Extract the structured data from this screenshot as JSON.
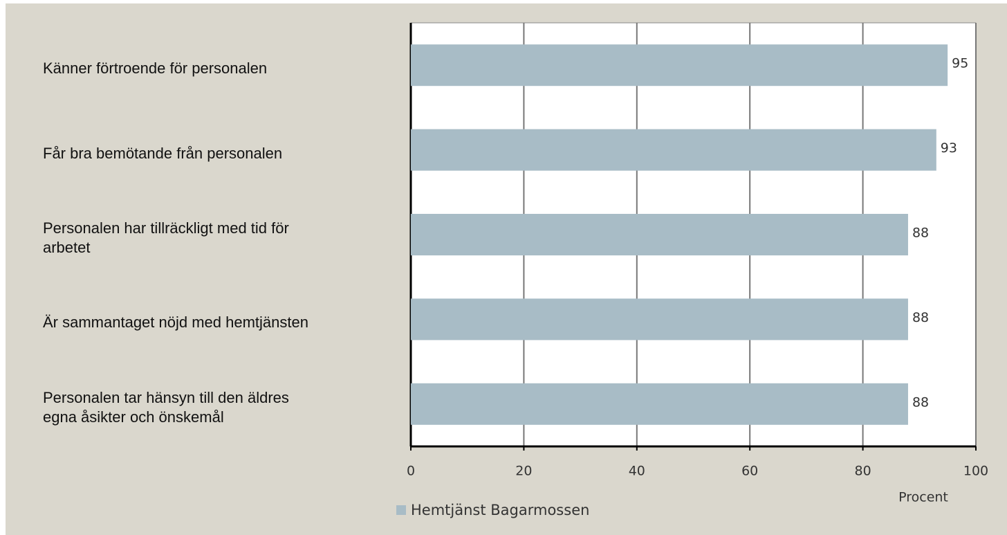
{
  "chart_data": {
    "type": "barh",
    "categories": [
      "Känner förtroende för personalen",
      "Får bra bemötande från personalen",
      "Personalen har tillräckligt med tid för\narbetet",
      "Är sammantaget nöjd med hemtjänsten",
      "Personalen tar hänsyn till den äldres\negna åsikter och önskemål"
    ],
    "series": [
      {
        "name": "Hemtjänst Bagarmossen",
        "color": "#a8bcc6",
        "values": [
          95,
          93,
          88,
          88,
          88
        ]
      }
    ],
    "xlim": [
      0,
      100
    ],
    "xticks": [
      0,
      20,
      40,
      60,
      80,
      100
    ],
    "x_label": "Procent",
    "grid": true,
    "legend": "bottom"
  }
}
